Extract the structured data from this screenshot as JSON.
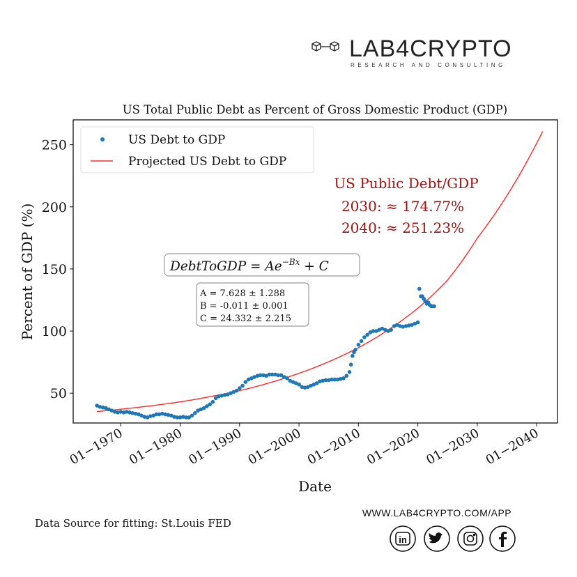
{
  "brand": {
    "name": "LAB4CRYPTO",
    "tagline": "RESEARCH AND CONSULTING",
    "website": "WWW.LAB4CRYPTO.COM/APP",
    "social_icons": [
      "linkedin-icon",
      "twitter-icon",
      "instagram-icon",
      "facebook-icon"
    ],
    "social_labels": [
      "in",
      "t",
      "ig",
      "f"
    ]
  },
  "source_note": "Data Source for fitting: St.Louis FED",
  "chart_data": {
    "type": "scatter",
    "title": "US Total Public Debt as Percent of Gross Domestic Product (GDP)",
    "xlabel": "Date",
    "ylabel": "Percent of GDP (%)",
    "xlim": [
      1962,
      2043.5
    ],
    "ylim": [
      26,
      270
    ],
    "x_ticks": [
      1970,
      1980,
      1990,
      2000,
      2010,
      2020,
      2030,
      2040
    ],
    "x_tick_labels": [
      "01−1970",
      "01−1980",
      "01−1990",
      "01−2000",
      "01−2010",
      "01−2020",
      "01−2030",
      "01−2040"
    ],
    "y_ticks": [
      50,
      100,
      150,
      200,
      250
    ],
    "y_tick_labels": [
      "50",
      "100",
      "150",
      "200",
      "250"
    ],
    "grid": false,
    "legend": {
      "placement": "top-left",
      "entries": [
        "US Debt to GDP",
        "Projected US Debt to GDP"
      ]
    },
    "colors": {
      "observed": "#1f77b4",
      "projected": "#ff2a2a",
      "annotation": "#9b1111"
    },
    "series": [
      {
        "name": "US Debt to GDP",
        "type": "scatter",
        "points": [
          [
            1966,
            40
          ],
          [
            1966.5,
            39
          ],
          [
            1967,
            38.5
          ],
          [
            1967.5,
            38
          ],
          [
            1968,
            37
          ],
          [
            1968.5,
            36
          ],
          [
            1969,
            35
          ],
          [
            1969.5,
            34.5
          ],
          [
            1970,
            35
          ],
          [
            1970.5,
            34.5
          ],
          [
            1971,
            35
          ],
          [
            1971.5,
            34.5
          ],
          [
            1972,
            34
          ],
          [
            1972.5,
            33.5
          ],
          [
            1973,
            33
          ],
          [
            1973.5,
            32
          ],
          [
            1974,
            31
          ],
          [
            1974.5,
            30.5
          ],
          [
            1975,
            31.5
          ],
          [
            1975.5,
            32
          ],
          [
            1976,
            33
          ],
          [
            1976.5,
            33
          ],
          [
            1977,
            33.5
          ],
          [
            1977.5,
            33
          ],
          [
            1978,
            32.5
          ],
          [
            1978.5,
            32
          ],
          [
            1979,
            31
          ],
          [
            1979.5,
            30.5
          ],
          [
            1980,
            30.5
          ],
          [
            1980.5,
            31
          ],
          [
            1981,
            30.5
          ],
          [
            1981.5,
            30.5
          ],
          [
            1982,
            32
          ],
          [
            1982.5,
            34
          ],
          [
            1983,
            36
          ],
          [
            1983.5,
            37
          ],
          [
            1984,
            38
          ],
          [
            1984.5,
            39.5
          ],
          [
            1985,
            41
          ],
          [
            1985.5,
            43
          ],
          [
            1986,
            46
          ],
          [
            1986.5,
            47.5
          ],
          [
            1987,
            48
          ],
          [
            1987.5,
            48.5
          ],
          [
            1988,
            49
          ],
          [
            1988.5,
            50
          ],
          [
            1989,
            51
          ],
          [
            1989.5,
            52
          ],
          [
            1990,
            54
          ],
          [
            1990.5,
            56
          ],
          [
            1991,
            59
          ],
          [
            1991.5,
            61
          ],
          [
            1992,
            62
          ],
          [
            1992.5,
            63
          ],
          [
            1993,
            64
          ],
          [
            1993.5,
            64.5
          ],
          [
            1994,
            64.5
          ],
          [
            1994.5,
            64
          ],
          [
            1995,
            65
          ],
          [
            1995.5,
            65
          ],
          [
            1996,
            65
          ],
          [
            1996.5,
            64.5
          ],
          [
            1997,
            64.5
          ],
          [
            1997.5,
            63
          ],
          [
            1998,
            62
          ],
          [
            1998.5,
            60
          ],
          [
            1999,
            59
          ],
          [
            1999.5,
            58
          ],
          [
            2000,
            57
          ],
          [
            2000.5,
            55
          ],
          [
            2001,
            54.5
          ],
          [
            2001.5,
            55
          ],
          [
            2002,
            56
          ],
          [
            2002.5,
            57
          ],
          [
            2003,
            58
          ],
          [
            2003.5,
            59.5
          ],
          [
            2004,
            60
          ],
          [
            2004.5,
            60.5
          ],
          [
            2005,
            60.5
          ],
          [
            2005.5,
            61
          ],
          [
            2006,
            61
          ],
          [
            2006.5,
            61
          ],
          [
            2007,
            61.5
          ],
          [
            2007.5,
            62
          ],
          [
            2008,
            64
          ],
          [
            2008.5,
            67
          ],
          [
            2008.75,
            73
          ],
          [
            2009,
            80
          ],
          [
            2009.25,
            83
          ],
          [
            2009.5,
            85
          ],
          [
            2010,
            89
          ],
          [
            2010.5,
            92
          ],
          [
            2011,
            95
          ],
          [
            2011.5,
            97
          ],
          [
            2012,
            99
          ],
          [
            2012.5,
            100
          ],
          [
            2013,
            100
          ],
          [
            2013.5,
            101
          ],
          [
            2014,
            102
          ],
          [
            2014.5,
            101
          ],
          [
            2015,
            100
          ],
          [
            2015.5,
            101
          ],
          [
            2016,
            104
          ],
          [
            2016.5,
            105
          ],
          [
            2017,
            104
          ],
          [
            2017.5,
            103.5
          ],
          [
            2018,
            104
          ],
          [
            2018.5,
            104.5
          ],
          [
            2019,
            105
          ],
          [
            2019.5,
            106
          ],
          [
            2020,
            107
          ],
          [
            2020.25,
            134
          ],
          [
            2020.5,
            128
          ],
          [
            2020.75,
            128
          ],
          [
            2021,
            126
          ],
          [
            2021.25,
            124
          ],
          [
            2021.5,
            122
          ],
          [
            2021.75,
            123
          ],
          [
            2022,
            121
          ],
          [
            2022.25,
            120
          ],
          [
            2022.5,
            120
          ],
          [
            2022.75,
            120
          ]
        ]
      },
      {
        "name": "Projected US Debt to GDP",
        "type": "line",
        "points": [
          [
            1966,
            35.2
          ],
          [
            1970,
            37.1
          ],
          [
            1975,
            39.8
          ],
          [
            1980,
            43.0
          ],
          [
            1985,
            47.2
          ],
          [
            1990,
            52.0
          ],
          [
            1995,
            58.3
          ],
          [
            2000,
            66.0
          ],
          [
            2005,
            75.3
          ],
          [
            2010,
            86.6
          ],
          [
            2015,
            100.9
          ],
          [
            2020,
            118.4
          ],
          [
            2025,
            141.0
          ],
          [
            2030,
            174.77
          ],
          [
            2035,
            209.1
          ],
          [
            2040,
            251.23
          ],
          [
            2041,
            260.7
          ]
        ]
      }
    ],
    "annotations": {
      "heading": "US Public Debt/GDP",
      "proj_2030": "2030: ≈ 174.77%",
      "proj_2040": "2040: ≈ 251.23%",
      "formula": "DebtToGDP = Ae",
      "formula_exp": "−Bx",
      "formula_tail": " + C",
      "params": [
        "A = 7.628 ± 1.288",
        "B = -0.011 ± 0.001",
        "C = 24.332 ± 2.215"
      ]
    },
    "fit_params": {
      "A": 7.628,
      "B": -0.011,
      "C": 24.332
    }
  }
}
